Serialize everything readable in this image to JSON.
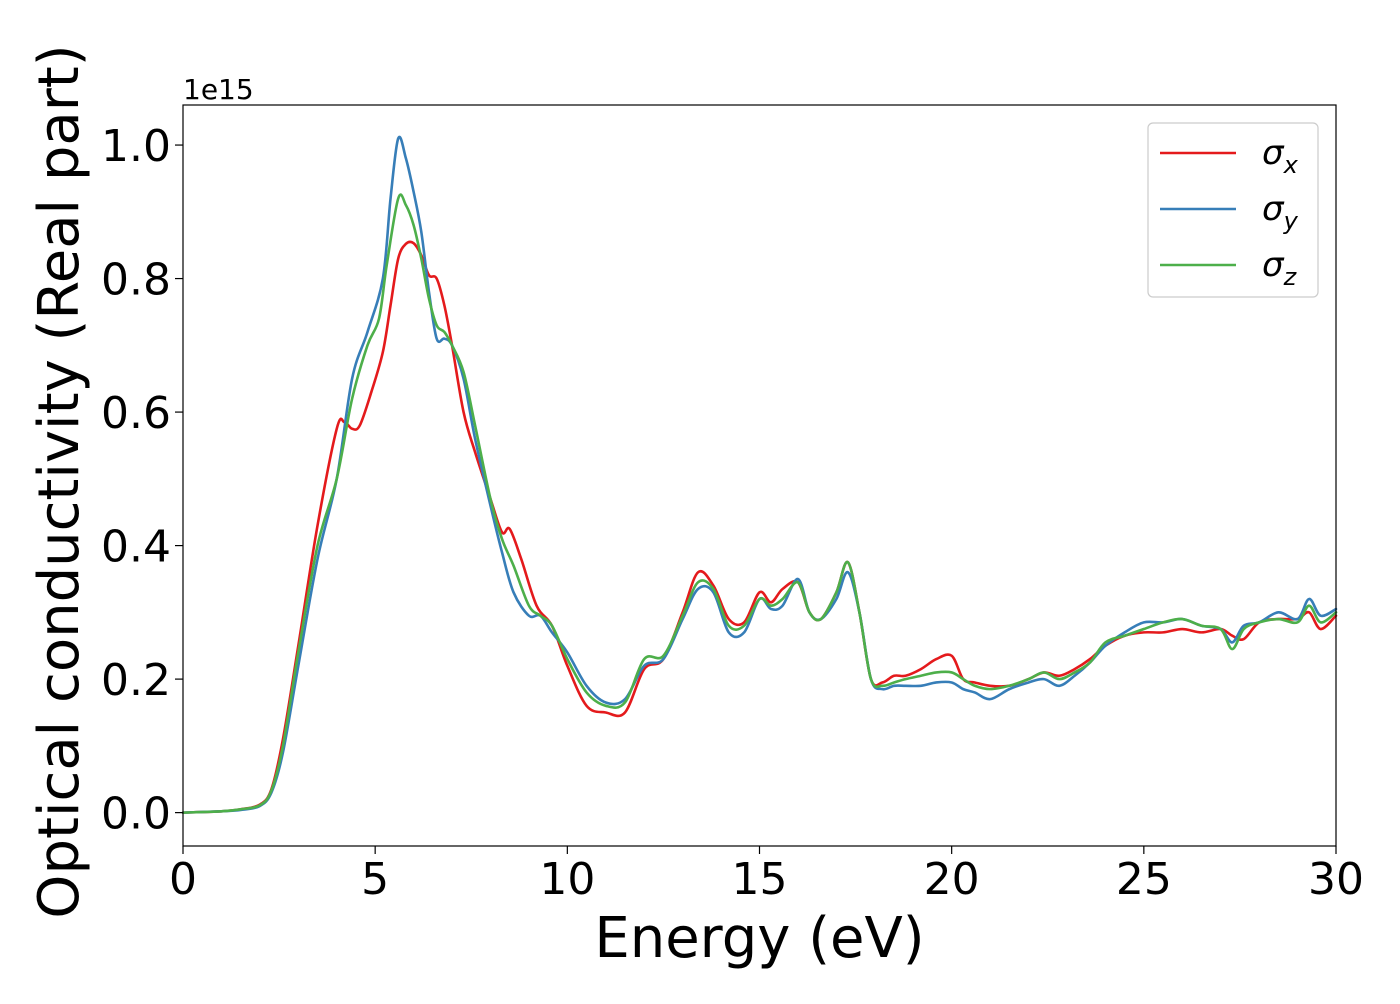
{
  "chart_data": {
    "type": "line",
    "title": "",
    "xlabel": "Energy (eV)",
    "ylabel": "Optical conductivity (Real part)",
    "y_offset_text": "1e15",
    "xlim": [
      0,
      30
    ],
    "ylim": [
      -0.05,
      1.06
    ],
    "xticks": [
      0,
      5,
      10,
      15,
      20,
      25,
      30
    ],
    "xtick_labels": [
      "0",
      "5",
      "10",
      "15",
      "20",
      "25",
      "30"
    ],
    "yticks": [
      0.0,
      0.2,
      0.4,
      0.6,
      0.8,
      1.0
    ],
    "ytick_labels": [
      "0.0",
      "0.2",
      "0.4",
      "0.6",
      "0.8",
      "1.0"
    ],
    "grid": false,
    "legend_position": "top-right",
    "series": [
      {
        "name": "σx",
        "symbol": "σ",
        "subscript": "x",
        "color": "#e41a1c",
        "x": [
          0,
          1,
          1.5,
          2,
          2.3,
          2.6,
          3,
          3.5,
          4,
          4.2,
          4.4,
          4.6,
          4.9,
          5.2,
          5.4,
          5.6,
          5.8,
          6,
          6.2,
          6.4,
          6.6,
          6.8,
          7,
          7.3,
          7.6,
          8,
          8.3,
          8.5,
          8.8,
          9.2,
          9.6,
          10,
          10.5,
          11,
          11.5,
          12,
          12.5,
          13,
          13.4,
          13.8,
          14.2,
          14.6,
          15,
          15.3,
          15.6,
          16,
          16.3,
          16.6,
          17,
          17.3,
          17.6,
          17.9,
          18.2,
          18.5,
          18.8,
          19.2,
          19.6,
          20,
          20.3,
          20.6,
          21,
          21.5,
          22,
          22.4,
          22.8,
          23.2,
          23.6,
          24,
          24.5,
          25,
          25.5,
          26,
          26.5,
          27,
          27.3,
          27.6,
          28,
          28.5,
          29,
          29.3,
          29.6,
          30
        ],
        "y": [
          0,
          0.002,
          0.005,
          0.012,
          0.035,
          0.11,
          0.25,
          0.43,
          0.575,
          0.585,
          0.575,
          0.58,
          0.63,
          0.69,
          0.76,
          0.83,
          0.852,
          0.853,
          0.835,
          0.805,
          0.8,
          0.76,
          0.7,
          0.6,
          0.54,
          0.47,
          0.42,
          0.425,
          0.38,
          0.31,
          0.28,
          0.22,
          0.16,
          0.15,
          0.15,
          0.215,
          0.23,
          0.3,
          0.36,
          0.34,
          0.29,
          0.285,
          0.33,
          0.315,
          0.335,
          0.345,
          0.3,
          0.29,
          0.33,
          0.375,
          0.3,
          0.2,
          0.195,
          0.205,
          0.205,
          0.215,
          0.23,
          0.235,
          0.2,
          0.195,
          0.19,
          0.19,
          0.2,
          0.21,
          0.205,
          0.215,
          0.23,
          0.25,
          0.265,
          0.27,
          0.27,
          0.275,
          0.27,
          0.275,
          0.265,
          0.26,
          0.285,
          0.29,
          0.29,
          0.3,
          0.275,
          0.295
        ]
      },
      {
        "name": "σy",
        "symbol": "σ",
        "subscript": "y",
        "color": "#377eb8",
        "x": [
          0,
          1,
          1.5,
          2,
          2.3,
          2.6,
          3,
          3.5,
          4,
          4.4,
          4.8,
          5.2,
          5.4,
          5.6,
          5.8,
          6,
          6.2,
          6.4,
          6.6,
          6.8,
          7,
          7.3,
          7.6,
          8,
          8.3,
          8.6,
          9,
          9.3,
          9.6,
          10,
          10.5,
          11,
          11.5,
          12,
          12.5,
          13,
          13.4,
          13.8,
          14.2,
          14.6,
          15,
          15.3,
          15.6,
          16,
          16.3,
          16.6,
          17,
          17.3,
          17.6,
          17.9,
          18.2,
          18.5,
          18.8,
          19.2,
          19.6,
          20,
          20.3,
          20.6,
          21,
          21.5,
          22,
          22.4,
          22.8,
          23.2,
          23.6,
          24,
          24.5,
          25,
          25.5,
          26,
          26.5,
          27,
          27.3,
          27.6,
          28,
          28.5,
          29,
          29.3,
          29.6,
          30
        ],
        "y": [
          0,
          0.002,
          0.004,
          0.01,
          0.03,
          0.09,
          0.22,
          0.38,
          0.5,
          0.65,
          0.72,
          0.8,
          0.92,
          1.01,
          0.98,
          0.93,
          0.87,
          0.78,
          0.71,
          0.71,
          0.7,
          0.65,
          0.56,
          0.46,
          0.39,
          0.33,
          0.295,
          0.295,
          0.27,
          0.24,
          0.19,
          0.165,
          0.17,
          0.22,
          0.23,
          0.29,
          0.335,
          0.33,
          0.27,
          0.27,
          0.32,
          0.305,
          0.31,
          0.35,
          0.3,
          0.29,
          0.32,
          0.36,
          0.3,
          0.2,
          0.185,
          0.19,
          0.19,
          0.19,
          0.195,
          0.195,
          0.185,
          0.18,
          0.17,
          0.185,
          0.195,
          0.2,
          0.19,
          0.205,
          0.225,
          0.25,
          0.27,
          0.285,
          0.285,
          0.29,
          0.28,
          0.275,
          0.255,
          0.28,
          0.285,
          0.3,
          0.29,
          0.32,
          0.295,
          0.305
        ]
      },
      {
        "name": "σz",
        "symbol": "σ",
        "subscript": "z",
        "color": "#4daf4a",
        "x": [
          0,
          1,
          1.5,
          2,
          2.3,
          2.6,
          3,
          3.5,
          4,
          4.4,
          4.8,
          5.1,
          5.3,
          5.6,
          5.8,
          6,
          6.2,
          6.4,
          6.6,
          6.8,
          7,
          7.3,
          7.6,
          8,
          8.3,
          8.6,
          9,
          9.3,
          9.6,
          10,
          10.5,
          11,
          11.5,
          12,
          12.5,
          13,
          13.4,
          13.8,
          14.2,
          14.6,
          15,
          15.3,
          15.6,
          16,
          16.3,
          16.6,
          17,
          17.3,
          17.6,
          17.9,
          18.2,
          18.5,
          18.8,
          19.2,
          19.6,
          20,
          20.3,
          20.6,
          21,
          21.5,
          22,
          22.4,
          22.8,
          23.2,
          23.6,
          24,
          24.5,
          25,
          25.5,
          26,
          26.5,
          27,
          27.3,
          27.6,
          28,
          28.5,
          29,
          29.3,
          29.6,
          30
        ],
        "y": [
          0,
          0.002,
          0.005,
          0.011,
          0.033,
          0.1,
          0.24,
          0.4,
          0.5,
          0.62,
          0.7,
          0.74,
          0.82,
          0.92,
          0.91,
          0.88,
          0.83,
          0.77,
          0.73,
          0.72,
          0.7,
          0.66,
          0.58,
          0.47,
          0.41,
          0.37,
          0.31,
          0.295,
          0.28,
          0.23,
          0.18,
          0.16,
          0.165,
          0.23,
          0.235,
          0.295,
          0.345,
          0.335,
          0.28,
          0.28,
          0.32,
          0.31,
          0.32,
          0.345,
          0.3,
          0.29,
          0.33,
          0.375,
          0.3,
          0.2,
          0.19,
          0.195,
          0.2,
          0.205,
          0.21,
          0.21,
          0.2,
          0.19,
          0.185,
          0.19,
          0.2,
          0.21,
          0.2,
          0.21,
          0.225,
          0.255,
          0.265,
          0.275,
          0.285,
          0.29,
          0.28,
          0.275,
          0.245,
          0.275,
          0.285,
          0.29,
          0.285,
          0.31,
          0.285,
          0.3
        ]
      }
    ]
  }
}
